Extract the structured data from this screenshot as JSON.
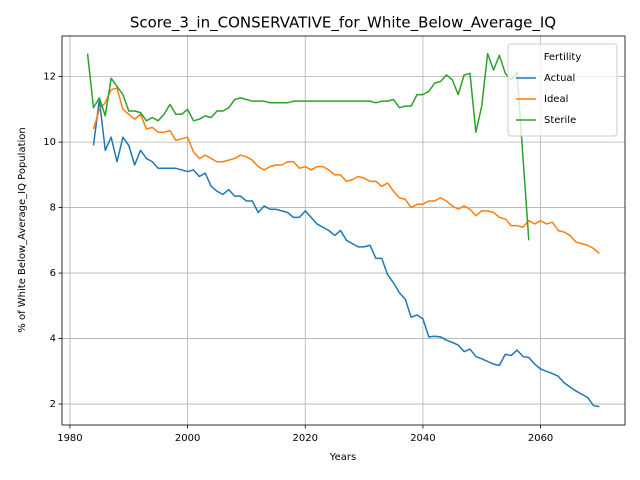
{
  "chart_data": {
    "type": "line",
    "title": "Score_3_in_CONSERVATIVE_for_White_Below_Average_IQ",
    "xlabel": "Years",
    "ylabel": "% of White Below_Average_IQ Population",
    "legend_title": "Fertility",
    "legend_loc": "upper right",
    "grid": true,
    "xlim": [
      1978.65,
      2074.35
    ],
    "xticks": [
      1980,
      2000,
      2020,
      2040,
      2060
    ],
    "ylim": [
      1.36,
      13.24
    ],
    "yticks": [
      2,
      4,
      6,
      8,
      10,
      12
    ],
    "x": [
      1983,
      1984,
      1985,
      1986,
      1987,
      1988,
      1989,
      1990,
      1991,
      1992,
      1993,
      1994,
      1995,
      1996,
      1997,
      1998,
      1999,
      2000,
      2001,
      2002,
      2003,
      2004,
      2005,
      2006,
      2007,
      2008,
      2009,
      2010,
      2011,
      2012,
      2013,
      2014,
      2015,
      2016,
      2017,
      2018,
      2019,
      2020,
      2021,
      2022,
      2023,
      2024,
      2025,
      2026,
      2027,
      2028,
      2029,
      2030,
      2031,
      2032,
      2033,
      2034,
      2035,
      2036,
      2037,
      2038,
      2039,
      2040,
      2041,
      2042,
      2043,
      2044,
      2045,
      2046,
      2047,
      2048,
      2049,
      2050,
      2051,
      2052,
      2053,
      2054,
      2055,
      2056,
      2057,
      2058,
      2059,
      2060,
      2061,
      2062,
      2063,
      2064,
      2065,
      2066,
      2067,
      2068,
      2069,
      2070
    ],
    "series": [
      {
        "name": "Actual",
        "color": "#1f77b4",
        "values": [
          null,
          9.9,
          11.3,
          9.75,
          10.15,
          9.4,
          10.15,
          9.9,
          9.3,
          9.75,
          9.5,
          9.4,
          9.2,
          9.2,
          9.2,
          9.2,
          9.15,
          9.1,
          9.15,
          8.95,
          9.05,
          8.65,
          8.5,
          8.4,
          8.55,
          8.35,
          8.35,
          8.2,
          8.2,
          7.85,
          8.05,
          7.95,
          7.95,
          7.9,
          7.85,
          7.7,
          7.7,
          7.9,
          7.7,
          7.5,
          7.4,
          7.3,
          7.15,
          7.3,
          7.0,
          6.9,
          6.8,
          6.8,
          6.85,
          6.45,
          6.45,
          5.95,
          5.7,
          5.4,
          5.2,
          4.65,
          4.72,
          4.6,
          4.05,
          4.07,
          4.05,
          3.95,
          3.88,
          3.8,
          3.6,
          3.68,
          3.45,
          3.38,
          3.3,
          3.22,
          3.18,
          3.52,
          3.48,
          3.65,
          3.45,
          3.42,
          3.22,
          3.07,
          3.0,
          2.93,
          2.85,
          2.65,
          2.52,
          2.4,
          2.3,
          2.2,
          1.95,
          1.92
        ]
      },
      {
        "name": "Ideal",
        "color": "#ff7f0e",
        "values": [
          null,
          10.4,
          11.0,
          11.2,
          11.6,
          11.65,
          11.0,
          10.85,
          10.7,
          10.85,
          10.4,
          10.45,
          10.3,
          10.3,
          10.35,
          10.05,
          10.1,
          10.15,
          9.7,
          9.5,
          9.6,
          9.5,
          9.4,
          9.4,
          9.45,
          9.5,
          9.6,
          9.55,
          9.45,
          9.25,
          9.15,
          9.25,
          9.3,
          9.3,
          9.4,
          9.4,
          9.2,
          9.25,
          9.15,
          9.25,
          9.25,
          9.15,
          9.0,
          9.0,
          8.8,
          8.85,
          8.95,
          8.9,
          8.8,
          8.8,
          8.65,
          8.75,
          8.5,
          8.3,
          8.25,
          8.0,
          8.1,
          8.1,
          8.2,
          8.2,
          8.3,
          8.2,
          8.05,
          7.95,
          8.05,
          7.95,
          7.75,
          7.9,
          7.9,
          7.85,
          7.7,
          7.65,
          7.45,
          7.45,
          7.4,
          7.6,
          7.5,
          7.6,
          7.5,
          7.55,
          7.3,
          7.25,
          7.15,
          6.95,
          6.9,
          6.85,
          6.75,
          6.6
        ]
      },
      {
        "name": "Sterile",
        "color": "#2ca02c",
        "values": [
          12.7,
          11.05,
          11.35,
          10.8,
          11.95,
          11.7,
          11.45,
          10.95,
          10.95,
          10.9,
          10.65,
          10.75,
          10.65,
          10.85,
          11.15,
          10.85,
          10.85,
          11.0,
          10.65,
          10.7,
          10.8,
          10.75,
          10.95,
          10.95,
          11.05,
          11.3,
          11.35,
          11.3,
          11.25,
          11.25,
          11.25,
          11.2,
          11.2,
          11.2,
          11.2,
          11.25,
          11.25,
          11.25,
          11.25,
          11.25,
          11.25,
          11.25,
          11.25,
          11.25,
          11.25,
          11.25,
          11.25,
          11.25,
          11.25,
          11.2,
          11.25,
          11.25,
          11.3,
          11.05,
          11.1,
          11.1,
          11.45,
          11.45,
          11.55,
          11.8,
          11.85,
          12.05,
          11.9,
          11.45,
          12.05,
          12.1,
          10.3,
          11.1,
          12.7,
          12.2,
          12.65,
          12.1,
          11.9,
          12.15,
          9.55,
          7.0,
          null,
          null,
          null,
          null,
          null,
          null,
          null,
          null,
          null,
          null,
          null,
          null
        ]
      }
    ]
  }
}
